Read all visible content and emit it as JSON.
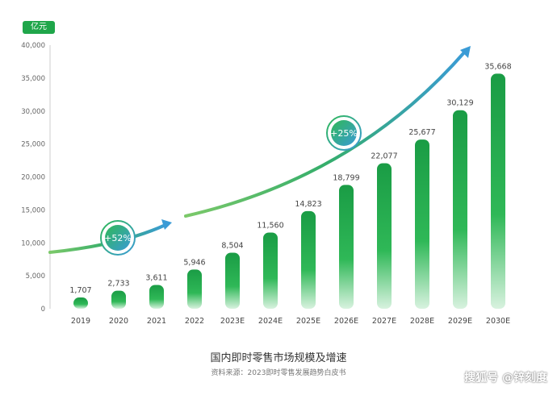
{
  "chart_data": {
    "type": "bar",
    "unit_label": "亿元",
    "categories": [
      "2019",
      "2020",
      "2021",
      "2022",
      "2023E",
      "2024E",
      "2025E",
      "2026E",
      "2027E",
      "2028E",
      "2029E",
      "2030E"
    ],
    "values": [
      1707,
      2733,
      3611,
      5946,
      8504,
      11560,
      14823,
      18799,
      22077,
      25677,
      30129,
      35668
    ],
    "value_labels": [
      "1,707",
      "2,733",
      "3,611",
      "5,946",
      "8,504",
      "11,560",
      "14,823",
      "18,799",
      "22,077",
      "25,677",
      "30,129",
      "35,668"
    ],
    "yticks": [
      "0",
      "5,000",
      "10,000",
      "15,000",
      "20,000",
      "25,000",
      "30,000",
      "35,000",
      "40,000"
    ],
    "ylim": [
      0,
      40000
    ],
    "title": "国内即时零售市场规模及增速",
    "source": "资料来源：2023即时零售发展趋势白皮书",
    "growth_annotations": [
      "+52%",
      "+25%"
    ],
    "bar_color": "#1fa64a",
    "arrow_color": "#3a9bd6",
    "grid": false
  },
  "watermark": "搜狐号 @锌刻度"
}
